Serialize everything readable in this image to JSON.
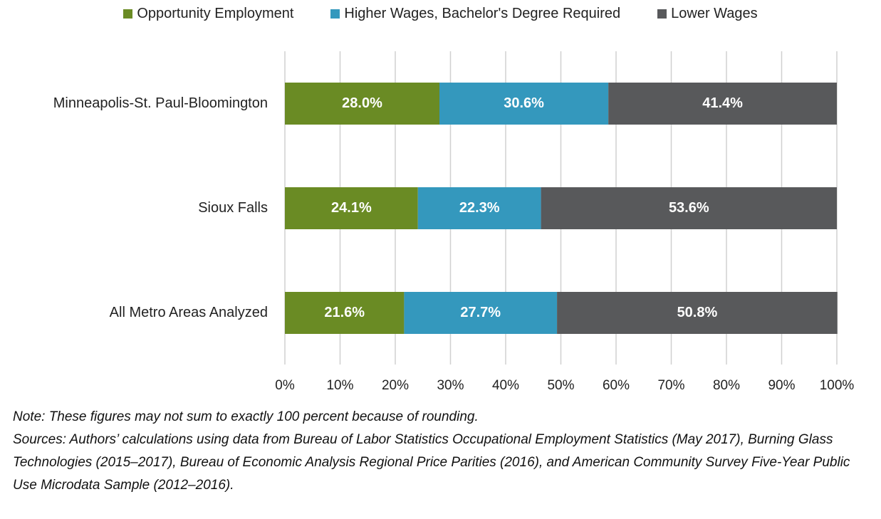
{
  "chart_data": {
    "type": "stacked-bar-horizontal",
    "categories": [
      "Minneapolis-St. Paul-Bloomington",
      "Sioux Falls",
      "All Metro Areas Analyzed"
    ],
    "series": [
      {
        "name": "Opportunity Employment",
        "color": "#6a8b24",
        "values": [
          28.0,
          24.1,
          21.6
        ],
        "value_labels": [
          "28.0%",
          "24.1%",
          "21.6%"
        ]
      },
      {
        "name": "Higher Wages, Bachelor's Degree Required",
        "color": "#3498bd",
        "values": [
          30.6,
          22.3,
          27.7
        ],
        "value_labels": [
          "30.6%",
          "22.3%",
          "27.7%"
        ]
      },
      {
        "name": "Lower Wages",
        "color": "#58595b",
        "values": [
          41.4,
          53.6,
          50.8
        ],
        "value_labels": [
          "41.4%",
          "53.6%",
          "50.8%"
        ]
      }
    ],
    "xlim": [
      0,
      100
    ],
    "xticks": [
      {
        "value": 0,
        "label": "0%"
      },
      {
        "value": 10,
        "label": "10%"
      },
      {
        "value": 20,
        "label": "20%"
      },
      {
        "value": 30,
        "label": "30%"
      },
      {
        "value": 40,
        "label": "40%"
      },
      {
        "value": 50,
        "label": "50%"
      },
      {
        "value": 60,
        "label": "60%"
      },
      {
        "value": 70,
        "label": "70%"
      },
      {
        "value": 80,
        "label": "80%"
      },
      {
        "value": 90,
        "label": "90%"
      },
      {
        "value": 100,
        "label": "100%"
      }
    ],
    "grid": true,
    "note": "Note: These figures may not sum to exactly 100 percent because of rounding.",
    "sources": "Sources: Authors’ calculations using data from Bureau of Labor Statistics Occupational Employment Statistics (May 2017), Burning Glass Technologies (2015–2017), Bureau of Economic Analysis Regional Price Parities (2016), and American Community Survey Five-Year Public Use Microdata Sample (2012–2016)."
  }
}
